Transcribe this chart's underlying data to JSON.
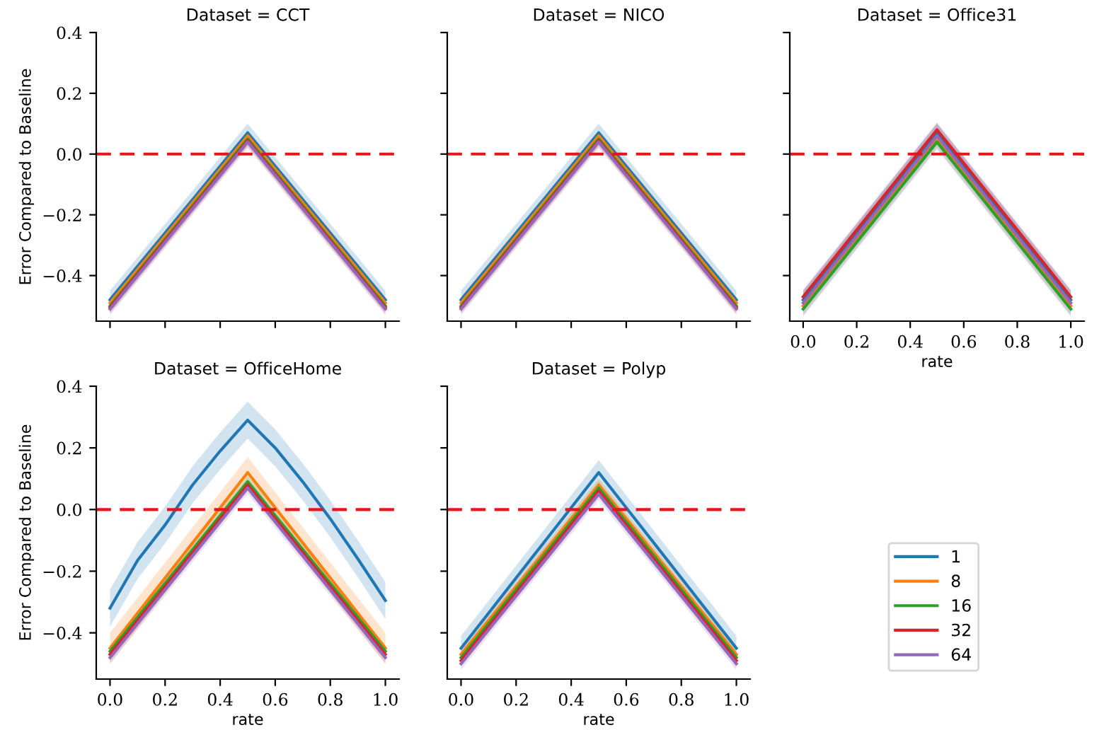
{
  "chart_data": [
    {
      "type": "line",
      "title": "Dataset = CCT",
      "ylabel": "Error Compared to Baseline",
      "legend": "right",
      "x": [
        0.0,
        0.1,
        0.2,
        0.3,
        0.4,
        0.5,
        0.6,
        0.7,
        0.8,
        0.9,
        1.0
      ],
      "xlim": [
        -0.05,
        1.05
      ],
      "ylim": [
        -0.55,
        0.4
      ],
      "xticks": [
        {
          "value": 0.0,
          "label": null
        },
        {
          "value": 0.2,
          "label": null
        },
        {
          "value": 0.4,
          "label": null
        },
        {
          "value": 0.6,
          "label": null
        },
        {
          "value": 0.8,
          "label": null
        },
        {
          "value": 1.0,
          "label": null
        }
      ],
      "yticks": [
        {
          "value": -0.4,
          "label": "−0.4"
        },
        {
          "value": -0.2,
          "label": "−0.2"
        },
        {
          "value": 0.0,
          "label": "0.0"
        },
        {
          "value": 0.2,
          "label": "0.2"
        },
        {
          "value": 0.4,
          "label": "0.4"
        }
      ],
      "tick_labels": "y",
      "ref_lines": [
        {
          "axis": "y",
          "value": 0,
          "color": "#e8141c",
          "line_style": "dashed"
        }
      ],
      "series": [
        {
          "name": "1",
          "color": "#1f77b4",
          "values": [
            -0.48,
            -0.37,
            -0.26,
            -0.15,
            -0.04,
            0.07,
            -0.04,
            -0.15,
            -0.26,
            -0.37,
            -0.48
          ],
          "lower": [
            -0.51,
            -0.4,
            -0.29,
            -0.18,
            -0.07,
            0.04,
            -0.07,
            -0.18,
            -0.29,
            -0.4,
            -0.51
          ],
          "upper": [
            -0.45,
            -0.34,
            -0.23,
            -0.12,
            -0.01,
            0.1,
            -0.01,
            -0.12,
            -0.23,
            -0.34,
            -0.45
          ]
        },
        {
          "name": "8",
          "color": "#ff7f0e",
          "values": [
            -0.49,
            -0.38,
            -0.27,
            -0.16,
            -0.05,
            0.06,
            -0.05,
            -0.16,
            -0.27,
            -0.38,
            -0.49
          ],
          "lower": [
            -0.51,
            -0.4,
            -0.29,
            -0.18,
            -0.07,
            0.04,
            -0.07,
            -0.18,
            -0.29,
            -0.4,
            -0.51
          ],
          "upper": [
            -0.47,
            -0.36,
            -0.25,
            -0.14,
            -0.03,
            0.08,
            -0.03,
            -0.14,
            -0.25,
            -0.36,
            -0.47
          ]
        },
        {
          "name": "16",
          "color": "#2ca02c",
          "values": [
            -0.5,
            -0.39,
            -0.28,
            -0.17,
            -0.06,
            0.05,
            -0.06,
            -0.17,
            -0.28,
            -0.39,
            -0.5
          ],
          "lower": [
            -0.52,
            -0.41,
            -0.3,
            -0.19,
            -0.08,
            0.03,
            -0.08,
            -0.19,
            -0.3,
            -0.41,
            -0.52
          ],
          "upper": [
            -0.48,
            -0.37,
            -0.26,
            -0.15,
            -0.04,
            0.07,
            -0.04,
            -0.15,
            -0.26,
            -0.37,
            -0.48
          ]
        },
        {
          "name": "32",
          "color": "#d62728",
          "values": [
            -0.505,
            -0.395,
            -0.285,
            -0.175,
            -0.065,
            0.045,
            -0.065,
            -0.175,
            -0.285,
            -0.395,
            -0.505
          ],
          "lower": [
            -0.525,
            -0.415,
            -0.305,
            -0.195,
            -0.085,
            0.025,
            -0.085,
            -0.195,
            -0.305,
            -0.415,
            -0.525
          ],
          "upper": [
            -0.485,
            -0.375,
            -0.265,
            -0.155,
            -0.045,
            0.065,
            -0.045,
            -0.155,
            -0.265,
            -0.375,
            -0.485
          ]
        },
        {
          "name": "64",
          "color": "#9467bd",
          "values": [
            -0.51,
            -0.4,
            -0.29,
            -0.18,
            -0.07,
            0.04,
            -0.07,
            -0.18,
            -0.29,
            -0.4,
            -0.51
          ],
          "lower": [
            -0.53,
            -0.42,
            -0.31,
            -0.2,
            -0.09,
            0.02,
            -0.09,
            -0.2,
            -0.31,
            -0.42,
            -0.53
          ],
          "upper": [
            -0.49,
            -0.38,
            -0.27,
            -0.16,
            -0.05,
            0.06,
            -0.05,
            -0.16,
            -0.27,
            -0.38,
            -0.49
          ]
        }
      ]
    },
    {
      "type": "line",
      "title": "Dataset = NICO",
      "x": [
        0.0,
        0.1,
        0.2,
        0.3,
        0.4,
        0.5,
        0.6,
        0.7,
        0.8,
        0.9,
        1.0
      ],
      "xlim": [
        -0.05,
        1.05
      ],
      "ylim": [
        -0.55,
        0.4
      ],
      "xticks": [
        {
          "value": 0.0,
          "label": null
        },
        {
          "value": 0.2,
          "label": null
        },
        {
          "value": 0.4,
          "label": null
        },
        {
          "value": 0.6,
          "label": null
        },
        {
          "value": 0.8,
          "label": null
        },
        {
          "value": 1.0,
          "label": null
        }
      ],
      "yticks": [
        {
          "value": -0.4,
          "label": null
        },
        {
          "value": -0.2,
          "label": null
        },
        {
          "value": 0.0,
          "label": null
        },
        {
          "value": 0.2,
          "label": null
        },
        {
          "value": 0.4,
          "label": null
        }
      ],
      "tick_labels": false,
      "ref_lines": [
        {
          "axis": "y",
          "value": 0,
          "color": "#e8141c",
          "line_style": "dashed"
        }
      ],
      "series": [
        {
          "color": "#1f77b4",
          "values": [
            -0.48,
            -0.37,
            -0.26,
            -0.15,
            -0.04,
            0.07,
            -0.04,
            -0.15,
            -0.26,
            -0.37,
            -0.48
          ],
          "lower": [
            -0.51,
            -0.4,
            -0.29,
            -0.18,
            -0.07,
            0.04,
            -0.07,
            -0.18,
            -0.29,
            -0.4,
            -0.51
          ],
          "upper": [
            -0.45,
            -0.34,
            -0.23,
            -0.12,
            -0.01,
            0.1,
            -0.01,
            -0.12,
            -0.23,
            -0.34,
            -0.45
          ]
        },
        {
          "color": "#ff7f0e",
          "values": [
            -0.49,
            -0.38,
            -0.27,
            -0.16,
            -0.05,
            0.06,
            -0.05,
            -0.16,
            -0.27,
            -0.38,
            -0.49
          ],
          "lower": [
            -0.51,
            -0.4,
            -0.29,
            -0.18,
            -0.07,
            0.04,
            -0.07,
            -0.18,
            -0.29,
            -0.4,
            -0.51
          ],
          "upper": [
            -0.47,
            -0.36,
            -0.25,
            -0.14,
            -0.03,
            0.08,
            -0.03,
            -0.14,
            -0.25,
            -0.36,
            -0.47
          ]
        },
        {
          "color": "#2ca02c",
          "values": [
            -0.5,
            -0.39,
            -0.28,
            -0.17,
            -0.06,
            0.05,
            -0.06,
            -0.17,
            -0.28,
            -0.39,
            -0.5
          ],
          "lower": [
            -0.52,
            -0.41,
            -0.3,
            -0.19,
            -0.08,
            0.03,
            -0.08,
            -0.19,
            -0.3,
            -0.41,
            -0.52
          ],
          "upper": [
            -0.48,
            -0.37,
            -0.26,
            -0.15,
            -0.04,
            0.07,
            -0.04,
            -0.15,
            -0.26,
            -0.37,
            -0.48
          ]
        },
        {
          "color": "#d62728",
          "values": [
            -0.505,
            -0.395,
            -0.285,
            -0.175,
            -0.065,
            0.045,
            -0.065,
            -0.175,
            -0.285,
            -0.395,
            -0.505
          ],
          "lower": [
            -0.525,
            -0.415,
            -0.305,
            -0.195,
            -0.085,
            0.025,
            -0.085,
            -0.195,
            -0.305,
            -0.415,
            -0.525
          ],
          "upper": [
            -0.485,
            -0.375,
            -0.265,
            -0.155,
            -0.045,
            0.065,
            -0.045,
            -0.155,
            -0.265,
            -0.375,
            -0.485
          ]
        },
        {
          "color": "#9467bd",
          "values": [
            -0.51,
            -0.4,
            -0.29,
            -0.18,
            -0.07,
            0.04,
            -0.07,
            -0.18,
            -0.29,
            -0.4,
            -0.51
          ],
          "lower": [
            -0.53,
            -0.42,
            -0.31,
            -0.2,
            -0.09,
            0.02,
            -0.09,
            -0.2,
            -0.31,
            -0.42,
            -0.53
          ],
          "upper": [
            -0.49,
            -0.38,
            -0.27,
            -0.16,
            -0.05,
            0.06,
            -0.05,
            -0.16,
            -0.27,
            -0.38,
            -0.49
          ]
        }
      ]
    },
    {
      "type": "line",
      "title": "Dataset = Office31",
      "xlabel": "rate",
      "x": [
        0.0,
        0.1,
        0.2,
        0.3,
        0.4,
        0.5,
        0.6,
        0.7,
        0.8,
        0.9,
        1.0
      ],
      "xlim": [
        -0.05,
        1.05
      ],
      "ylim": [
        -0.55,
        0.4
      ],
      "xticks": [
        {
          "value": 0.0,
          "label": "0.0"
        },
        {
          "value": 0.2,
          "label": "0.2"
        },
        {
          "value": 0.4,
          "label": "0.4"
        },
        {
          "value": 0.6,
          "label": "0.6"
        },
        {
          "value": 0.8,
          "label": "0.8"
        },
        {
          "value": 1.0,
          "label": "1.0"
        }
      ],
      "yticks": [
        {
          "value": -0.4,
          "label": null
        },
        {
          "value": -0.2,
          "label": null
        },
        {
          "value": 0.0,
          "label": null
        },
        {
          "value": 0.2,
          "label": null
        },
        {
          "value": 0.4,
          "label": null
        }
      ],
      "tick_labels": "x",
      "ref_lines": [
        {
          "axis": "y",
          "value": 0,
          "color": "#e8141c",
          "line_style": "dashed"
        }
      ],
      "series": [
        {
          "color": "#1f77b4",
          "values": [
            -0.48,
            -0.37,
            -0.26,
            -0.15,
            -0.04,
            0.07,
            -0.04,
            -0.15,
            -0.26,
            -0.37,
            -0.48
          ],
          "lower": [
            -0.51,
            -0.4,
            -0.29,
            -0.18,
            -0.07,
            0.04,
            -0.07,
            -0.18,
            -0.29,
            -0.4,
            -0.51
          ],
          "upper": [
            -0.45,
            -0.34,
            -0.23,
            -0.12,
            -0.01,
            0.1,
            -0.01,
            -0.12,
            -0.23,
            -0.34,
            -0.45
          ]
        },
        {
          "color": "#ff7f0e",
          "values": [
            -0.5,
            -0.39,
            -0.28,
            -0.17,
            -0.06,
            0.05,
            -0.06,
            -0.17,
            -0.28,
            -0.39,
            -0.5
          ],
          "lower": [
            -0.52,
            -0.41,
            -0.3,
            -0.19,
            -0.08,
            0.03,
            -0.08,
            -0.19,
            -0.3,
            -0.41,
            -0.52
          ],
          "upper": [
            -0.48,
            -0.37,
            -0.26,
            -0.15,
            -0.04,
            0.07,
            -0.04,
            -0.15,
            -0.26,
            -0.37,
            -0.48
          ]
        },
        {
          "color": "#2ca02c",
          "values": [
            -0.51,
            -0.4,
            -0.29,
            -0.18,
            -0.07,
            0.04,
            -0.07,
            -0.18,
            -0.29,
            -0.4,
            -0.51
          ],
          "lower": [
            -0.53,
            -0.42,
            -0.31,
            -0.2,
            -0.09,
            0.02,
            -0.09,
            -0.2,
            -0.31,
            -0.42,
            -0.53
          ],
          "upper": [
            -0.49,
            -0.38,
            -0.27,
            -0.16,
            -0.05,
            0.06,
            -0.05,
            -0.16,
            -0.27,
            -0.38,
            -0.49
          ]
        },
        {
          "color": "#d62728",
          "values": [
            -0.47,
            -0.36,
            -0.25,
            -0.14,
            -0.03,
            0.08,
            -0.03,
            -0.14,
            -0.25,
            -0.36,
            -0.47
          ],
          "lower": [
            -0.49,
            -0.38,
            -0.27,
            -0.16,
            -0.05,
            0.06,
            -0.05,
            -0.16,
            -0.27,
            -0.38,
            -0.49
          ],
          "upper": [
            -0.45,
            -0.34,
            -0.23,
            -0.12,
            -0.01,
            0.1,
            -0.01,
            -0.12,
            -0.23,
            -0.34,
            -0.45
          ]
        },
        {
          "color": "#9467bd",
          "values": [
            -0.49,
            -0.38,
            -0.27,
            -0.16,
            -0.05,
            0.06,
            -0.05,
            -0.16,
            -0.27,
            -0.38,
            -0.49
          ],
          "lower": [
            -0.535,
            -0.425,
            -0.315,
            -0.205,
            -0.095,
            0.015,
            -0.095,
            -0.205,
            -0.315,
            -0.425,
            -0.535
          ],
          "upper": [
            -0.445,
            -0.335,
            -0.225,
            -0.115,
            -0.005,
            0.105,
            -0.005,
            -0.115,
            -0.225,
            -0.335,
            -0.445
          ]
        }
      ]
    },
    {
      "type": "line",
      "title": "Dataset = OfficeHome",
      "xlabel": "rate",
      "ylabel": "Error Compared to Baseline",
      "x": [
        0.0,
        0.1,
        0.2,
        0.3,
        0.4,
        0.5,
        0.6,
        0.7,
        0.8,
        0.9,
        1.0
      ],
      "xlim": [
        -0.05,
        1.05
      ],
      "ylim": [
        -0.55,
        0.4
      ],
      "xticks": [
        {
          "value": 0.0,
          "label": "0.0"
        },
        {
          "value": 0.2,
          "label": "0.2"
        },
        {
          "value": 0.4,
          "label": "0.4"
        },
        {
          "value": 0.6,
          "label": "0.6"
        },
        {
          "value": 0.8,
          "label": "0.8"
        },
        {
          "value": 1.0,
          "label": "1.0"
        }
      ],
      "yticks": [
        {
          "value": -0.4,
          "label": "−0.4"
        },
        {
          "value": -0.2,
          "label": "−0.2"
        },
        {
          "value": 0.0,
          "label": "0.0"
        },
        {
          "value": 0.2,
          "label": "0.2"
        },
        {
          "value": 0.4,
          "label": "0.4"
        }
      ],
      "ref_lines": [
        {
          "axis": "y",
          "value": 0,
          "color": "#e8141c",
          "line_style": "dashed"
        }
      ],
      "series": [
        {
          "color": "#1f77b4",
          "values": [
            -0.32,
            -0.165,
            -0.05,
            0.08,
            0.19,
            0.29,
            0.2,
            0.09,
            -0.03,
            -0.16,
            -0.295
          ],
          "lower": [
            -0.38,
            -0.225,
            -0.11,
            0.02,
            0.13,
            0.23,
            0.14,
            0.03,
            -0.09,
            -0.22,
            -0.355
          ],
          "upper": [
            -0.26,
            -0.105,
            0.01,
            0.14,
            0.25,
            0.35,
            0.26,
            0.15,
            0.03,
            -0.1,
            -0.235
          ]
        },
        {
          "color": "#ff7f0e",
          "values": [
            -0.45,
            -0.336,
            -0.222,
            -0.108,
            0.006,
            0.12,
            0.006,
            -0.108,
            -0.222,
            -0.336,
            -0.45
          ],
          "lower": [
            -0.5,
            -0.386,
            -0.272,
            -0.158,
            -0.044,
            0.07,
            -0.044,
            -0.158,
            -0.272,
            -0.386,
            -0.5
          ],
          "upper": [
            -0.4,
            -0.286,
            -0.172,
            -0.058,
            0.056,
            0.17,
            0.056,
            -0.058,
            -0.172,
            -0.286,
            -0.4
          ]
        },
        {
          "color": "#2ca02c",
          "values": [
            -0.46,
            -0.35,
            -0.24,
            -0.13,
            -0.02,
            0.09,
            -0.02,
            -0.13,
            -0.24,
            -0.35,
            -0.46
          ],
          "lower": [
            -0.48,
            -0.37,
            -0.26,
            -0.15,
            -0.04,
            0.07,
            -0.04,
            -0.15,
            -0.26,
            -0.37,
            -0.48
          ],
          "upper": [
            -0.44,
            -0.33,
            -0.22,
            -0.11,
            0.0,
            0.11,
            0.0,
            -0.11,
            -0.22,
            -0.33,
            -0.44
          ]
        },
        {
          "color": "#d62728",
          "values": [
            -0.47,
            -0.36,
            -0.25,
            -0.14,
            -0.03,
            0.08,
            -0.03,
            -0.14,
            -0.25,
            -0.36,
            -0.47
          ],
          "lower": [
            -0.49,
            -0.38,
            -0.27,
            -0.16,
            -0.05,
            0.06,
            -0.05,
            -0.16,
            -0.27,
            -0.38,
            -0.49
          ],
          "upper": [
            -0.45,
            -0.34,
            -0.23,
            -0.12,
            -0.01,
            0.1,
            -0.01,
            -0.12,
            -0.23,
            -0.34,
            -0.45
          ]
        },
        {
          "color": "#9467bd",
          "values": [
            -0.48,
            -0.37,
            -0.26,
            -0.15,
            -0.04,
            0.07,
            -0.04,
            -0.15,
            -0.26,
            -0.37,
            -0.48
          ],
          "lower": [
            -0.5,
            -0.39,
            -0.28,
            -0.17,
            -0.06,
            0.05,
            -0.06,
            -0.17,
            -0.28,
            -0.39,
            -0.5
          ],
          "upper": [
            -0.46,
            -0.35,
            -0.24,
            -0.13,
            -0.02,
            0.09,
            -0.02,
            -0.13,
            -0.24,
            -0.35,
            -0.46
          ]
        }
      ]
    },
    {
      "type": "line",
      "title": "Dataset = Polyp",
      "xlabel": "rate",
      "x": [
        0.0,
        0.1,
        0.2,
        0.3,
        0.4,
        0.5,
        0.6,
        0.7,
        0.8,
        0.9,
        1.0
      ],
      "xlim": [
        -0.05,
        1.05
      ],
      "ylim": [
        -0.55,
        0.4
      ],
      "xticks": [
        {
          "value": 0.0,
          "label": "0.0"
        },
        {
          "value": 0.2,
          "label": "0.2"
        },
        {
          "value": 0.4,
          "label": "0.4"
        },
        {
          "value": 0.6,
          "label": "0.6"
        },
        {
          "value": 0.8,
          "label": "0.8"
        },
        {
          "value": 1.0,
          "label": "1.0"
        }
      ],
      "yticks": [
        {
          "value": -0.4,
          "label": null
        },
        {
          "value": -0.2,
          "label": null
        },
        {
          "value": 0.0,
          "label": null
        },
        {
          "value": 0.2,
          "label": null
        },
        {
          "value": 0.4,
          "label": null
        }
      ],
      "tick_labels": "x",
      "ref_lines": [
        {
          "axis": "y",
          "value": 0,
          "color": "#e8141c",
          "line_style": "dashed"
        }
      ],
      "series": [
        {
          "color": "#1f77b4",
          "values": [
            -0.45,
            -0.336,
            -0.222,
            -0.108,
            0.006,
            0.12,
            0.006,
            -0.108,
            -0.222,
            -0.336,
            -0.45
          ],
          "lower": [
            -0.49,
            -0.376,
            -0.262,
            -0.148,
            -0.034,
            0.08,
            -0.034,
            -0.148,
            -0.262,
            -0.376,
            -0.49
          ],
          "upper": [
            -0.41,
            -0.296,
            -0.182,
            -0.068,
            0.046,
            0.16,
            0.046,
            -0.068,
            -0.182,
            -0.296,
            -0.41
          ]
        },
        {
          "color": "#ff7f0e",
          "values": [
            -0.47,
            -0.36,
            -0.25,
            -0.14,
            -0.03,
            0.08,
            -0.03,
            -0.14,
            -0.25,
            -0.36,
            -0.47
          ],
          "lower": [
            -0.49,
            -0.38,
            -0.27,
            -0.16,
            -0.05,
            0.06,
            -0.05,
            -0.16,
            -0.27,
            -0.38,
            -0.49
          ],
          "upper": [
            -0.45,
            -0.34,
            -0.23,
            -0.12,
            -0.01,
            0.1,
            -0.01,
            -0.12,
            -0.23,
            -0.34,
            -0.45
          ]
        },
        {
          "color": "#2ca02c",
          "values": [
            -0.48,
            -0.37,
            -0.26,
            -0.15,
            -0.04,
            0.07,
            -0.04,
            -0.15,
            -0.26,
            -0.37,
            -0.48
          ],
          "lower": [
            -0.5,
            -0.39,
            -0.28,
            -0.17,
            -0.06,
            0.05,
            -0.06,
            -0.17,
            -0.28,
            -0.39,
            -0.5
          ],
          "upper": [
            -0.46,
            -0.35,
            -0.24,
            -0.13,
            -0.02,
            0.09,
            -0.02,
            -0.13,
            -0.24,
            -0.35,
            -0.46
          ]
        },
        {
          "color": "#d62728",
          "values": [
            -0.49,
            -0.38,
            -0.27,
            -0.16,
            -0.05,
            0.06,
            -0.05,
            -0.16,
            -0.27,
            -0.38,
            -0.49
          ],
          "lower": [
            -0.51,
            -0.4,
            -0.29,
            -0.18,
            -0.07,
            0.04,
            -0.07,
            -0.18,
            -0.29,
            -0.4,
            -0.51
          ],
          "upper": [
            -0.47,
            -0.36,
            -0.25,
            -0.14,
            -0.03,
            0.08,
            -0.03,
            -0.14,
            -0.25,
            -0.36,
            -0.47
          ]
        },
        {
          "color": "#9467bd",
          "values": [
            -0.5,
            -0.39,
            -0.28,
            -0.17,
            -0.06,
            0.05,
            -0.06,
            -0.17,
            -0.28,
            -0.39,
            -0.5
          ],
          "lower": [
            -0.52,
            -0.41,
            -0.3,
            -0.19,
            -0.08,
            0.03,
            -0.08,
            -0.19,
            -0.3,
            -0.41,
            -0.52
          ],
          "upper": [
            -0.48,
            -0.37,
            -0.26,
            -0.15,
            -0.04,
            0.07,
            -0.04,
            -0.15,
            -0.26,
            -0.37,
            -0.48
          ]
        }
      ]
    }
  ]
}
